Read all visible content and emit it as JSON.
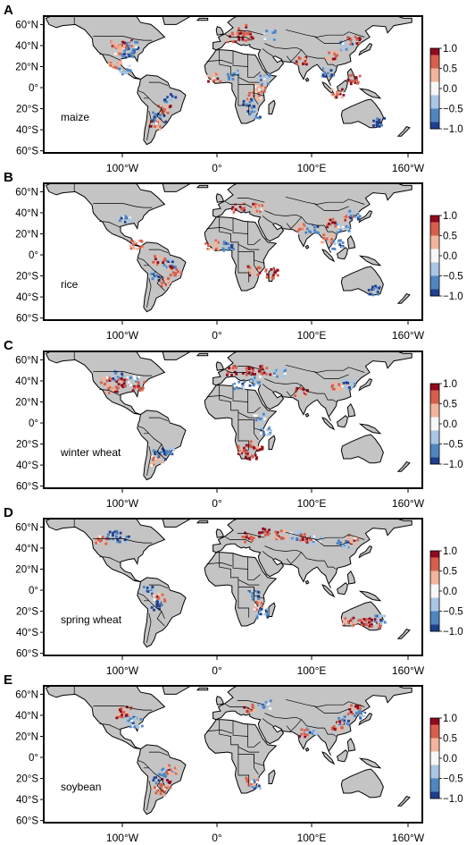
{
  "figure": {
    "lat_tick_labels": [
      "60°N",
      "40°N",
      "20°N",
      "0°",
      "20°S",
      "40°S",
      "60°S"
    ],
    "lon_tick_labels": [
      "100°W",
      "0°",
      "100°E",
      "160°W"
    ],
    "colorbar": {
      "tick_labels": [
        "1.0",
        "0.5",
        "0.0",
        "−0.5",
        "−1.0"
      ],
      "range": [
        -1.0,
        1.0
      ],
      "colors": [
        "#1f3f8f",
        "#4f86c2",
        "#a9c6e3",
        "#f7f7f7",
        "#f2b59b",
        "#d6604d",
        "#8e0b1f"
      ]
    },
    "land_color": "#c4c4c4",
    "panels": [
      {
        "letter": "A",
        "crop": "maize"
      },
      {
        "letter": "B",
        "crop": "rice"
      },
      {
        "letter": "C",
        "crop": "winter wheat"
      },
      {
        "letter": "D",
        "crop": "spring wheat"
      },
      {
        "letter": "E",
        "crop": "soybean"
      }
    ]
  }
}
